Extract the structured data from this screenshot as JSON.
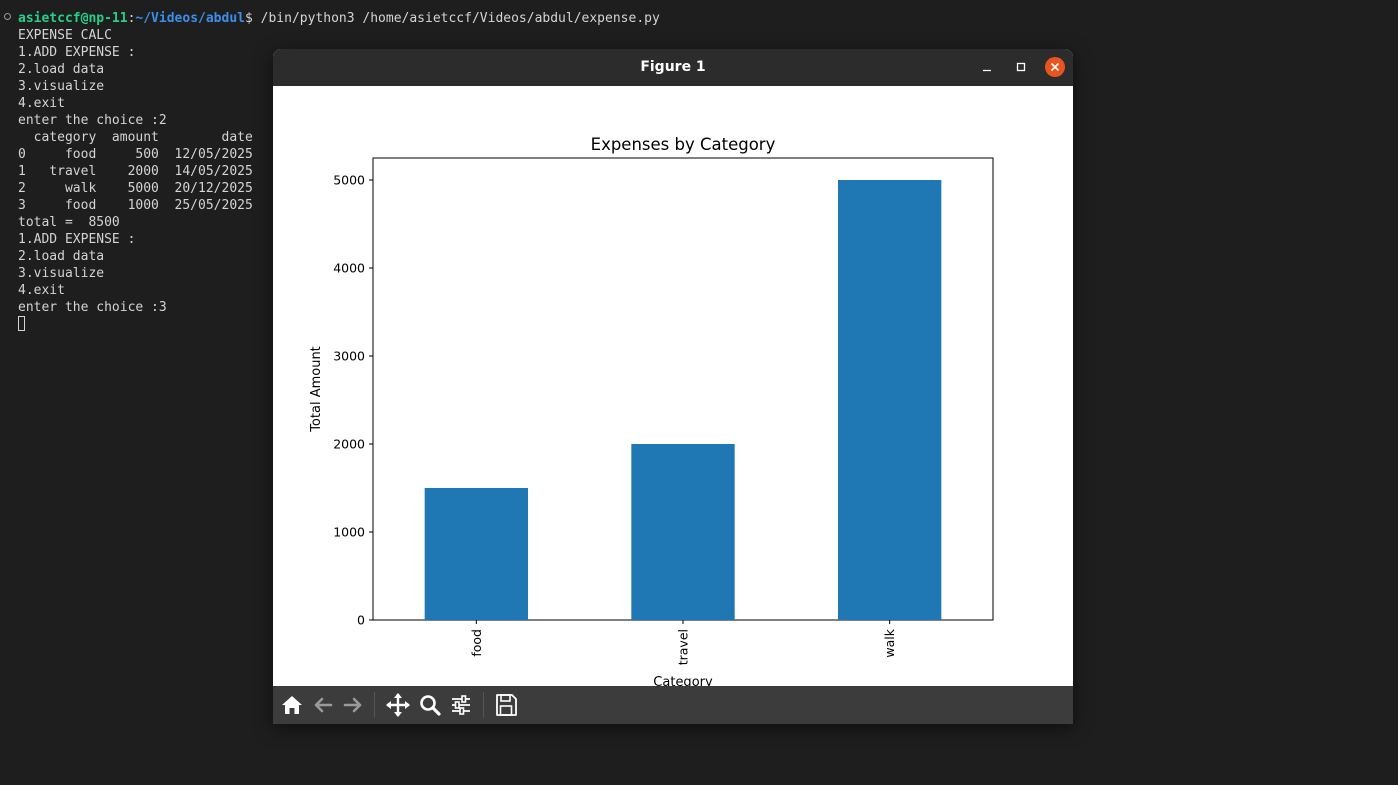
{
  "terminal": {
    "prompt": {
      "user_host": "asietccf@np-11",
      "separator": ":",
      "path": "~/Videos/abdul",
      "symbol": "$",
      "command": " /bin/python3 /home/asietccf/Videos/abdul/expense.py"
    },
    "lines": [
      "EXPENSE CALC",
      "1.ADD EXPENSE :",
      "2.load data",
      "3.visualize",
      "4.exit",
      "enter the choice :2",
      "  category  amount        date",
      "0     food     500  12/05/2025",
      "1   travel    2000  14/05/2025",
      "2     walk    5000  20/12/2025",
      "3     food    1000  25/05/2025",
      "total =  8500",
      "1.ADD EXPENSE :",
      "2.load data",
      "3.visualize",
      "4.exit",
      "enter the choice :3"
    ]
  },
  "figure_window": {
    "title": "Figure 1",
    "controls": [
      "minimize-icon",
      "maximize-icon",
      "close-icon"
    ],
    "toolbar_icons": [
      "home-icon",
      "back-arrow-icon",
      "forward-arrow-icon",
      "pan-icon",
      "zoom-icon",
      "configure-subplots-icon",
      "save-icon"
    ]
  },
  "colors": {
    "bar": "#1f77b4",
    "close_button": "#e95420",
    "terminal_user": "#23d18b",
    "terminal_path": "#3b8eea"
  },
  "chart_data": {
    "type": "bar",
    "title": "Expenses by Category",
    "xlabel": "Category",
    "ylabel": "Total Amount",
    "categories": [
      "food",
      "travel",
      "walk"
    ],
    "values": [
      1500,
      2000,
      5000
    ],
    "ylim": [
      0,
      5250
    ],
    "yticks": [
      0,
      1000,
      2000,
      3000,
      4000,
      5000
    ],
    "grid": false,
    "legend": false,
    "xtick_rotation": 90
  }
}
